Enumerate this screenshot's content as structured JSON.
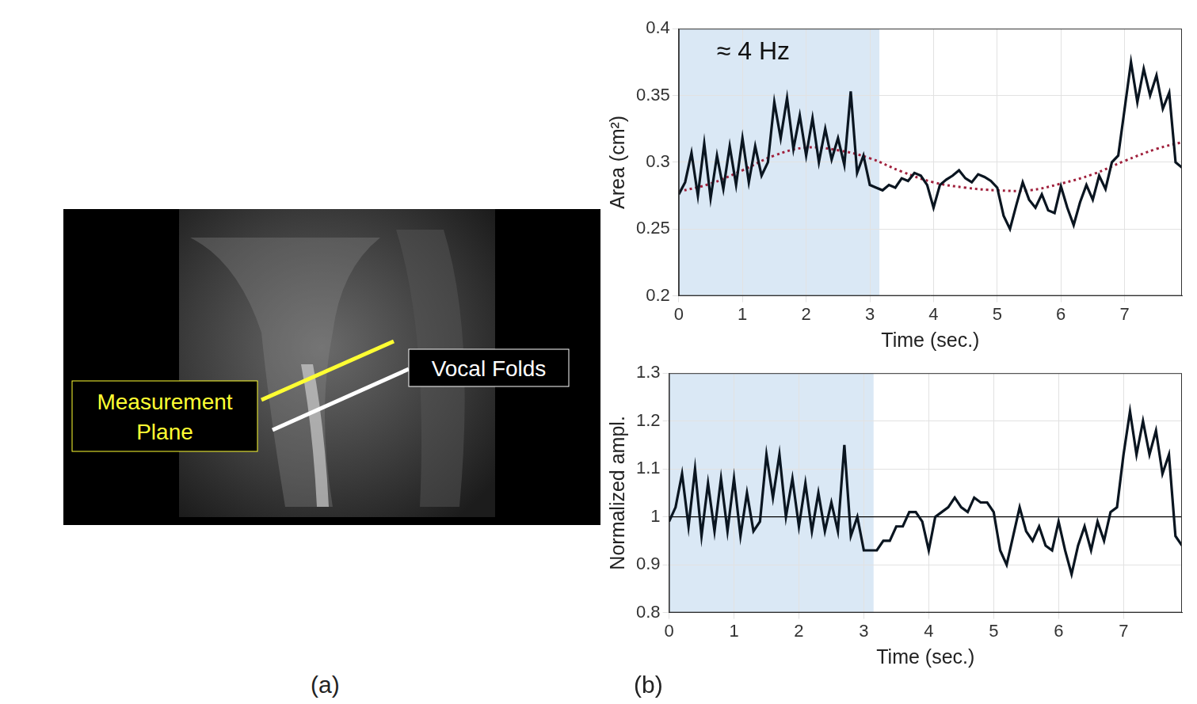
{
  "panel_a": {
    "label": "(a)",
    "annotations": [
      {
        "text": "Measurement Plane",
        "color": "#ffff33"
      },
      {
        "text": "Vocal Folds",
        "color": "#ffffff"
      }
    ]
  },
  "panel_b": {
    "label": "(b)"
  },
  "chart_data": [
    {
      "type": "line",
      "annotation": "≈ 4 Hz",
      "x_label": "Time (sec.)",
      "y_label": "Area (cm²)",
      "xlim": [
        0,
        7.9
      ],
      "xticks": [
        0,
        1,
        2,
        3,
        4,
        5,
        6,
        7
      ],
      "ylim": [
        0.2,
        0.4
      ],
      "yticks": [
        0.2,
        0.25,
        0.3,
        0.35,
        0.4
      ],
      "grid": true,
      "shaded_region": {
        "x": [
          0,
          3.15
        ],
        "color": "#dae8f5"
      },
      "x": [
        0,
        0.1,
        0.2,
        0.3,
        0.4,
        0.5,
        0.6,
        0.7,
        0.8,
        0.9,
        1,
        1.1,
        1.2,
        1.3,
        1.4,
        1.5,
        1.6,
        1.7,
        1.8,
        1.9,
        2,
        2.1,
        2.2,
        2.3,
        2.4,
        2.5,
        2.6,
        2.7,
        2.8,
        2.9,
        3,
        3.1,
        3.2,
        3.3,
        3.4,
        3.5,
        3.6,
        3.7,
        3.8,
        3.9,
        4,
        4.1,
        4.2,
        4.3,
        4.4,
        4.5,
        4.6,
        4.7,
        4.8,
        4.9,
        5,
        5.1,
        5.2,
        5.3,
        5.4,
        5.5,
        5.6,
        5.7,
        5.8,
        5.9,
        6,
        6.1,
        6.2,
        6.3,
        6.4,
        6.5,
        6.6,
        6.7,
        6.8,
        6.9,
        7,
        7.1,
        7.2,
        7.3,
        7.4,
        7.5,
        7.6,
        7.7,
        7.8,
        7.9
      ],
      "series": [
        {
          "color": "#0a1520",
          "line_style": "solid",
          "values": [
            0.276,
            0.285,
            0.307,
            0.275,
            0.314,
            0.273,
            0.305,
            0.28,
            0.312,
            0.283,
            0.318,
            0.285,
            0.312,
            0.29,
            0.3,
            0.345,
            0.318,
            0.348,
            0.31,
            0.335,
            0.305,
            0.333,
            0.3,
            0.325,
            0.302,
            0.318,
            0.298,
            0.353,
            0.292,
            0.305,
            0.283,
            0.281,
            0.279,
            0.283,
            0.281,
            0.288,
            0.286,
            0.292,
            0.29,
            0.283,
            0.266,
            0.283,
            0.287,
            0.29,
            0.294,
            0.288,
            0.285,
            0.291,
            0.289,
            0.286,
            0.281,
            0.26,
            0.25,
            0.268,
            0.285,
            0.272,
            0.266,
            0.276,
            0.264,
            0.262,
            0.282,
            0.266,
            0.253,
            0.27,
            0.283,
            0.272,
            0.29,
            0.28,
            0.3,
            0.305,
            0.34,
            0.375,
            0.345,
            0.37,
            0.35,
            0.365,
            0.34,
            0.352,
            0.3,
            0.296
          ]
        },
        {
          "color": "#a0203c",
          "line_style": "dotted",
          "x": [
            0,
            0.5,
            1,
            1.5,
            2,
            2.5,
            3,
            3.5,
            4,
            4.5,
            5,
            5.5,
            6,
            6.5,
            7,
            7.5,
            7.9
          ],
          "values": [
            0.278,
            0.284,
            0.294,
            0.305,
            0.311,
            0.309,
            0.303,
            0.293,
            0.285,
            0.281,
            0.279,
            0.279,
            0.284,
            0.291,
            0.301,
            0.31,
            0.315
          ]
        }
      ]
    },
    {
      "type": "line",
      "x_label": "Time (sec.)",
      "y_label": "Normalized ampl.",
      "xlim": [
        0,
        7.9
      ],
      "xticks": [
        0,
        1,
        2,
        3,
        4,
        5,
        6,
        7
      ],
      "ylim": [
        0.8,
        1.3
      ],
      "yticks": [
        0.8,
        0.9,
        1,
        1.1,
        1.2,
        1.3
      ],
      "grid": true,
      "shaded_region": {
        "x": [
          0,
          3.15
        ],
        "color": "#dae8f5"
      },
      "reference_line": {
        "y": 1,
        "color": "#000000"
      },
      "x": [
        0,
        0.1,
        0.2,
        0.3,
        0.4,
        0.5,
        0.6,
        0.7,
        0.8,
        0.9,
        1,
        1.1,
        1.2,
        1.3,
        1.4,
        1.5,
        1.6,
        1.7,
        1.8,
        1.9,
        2,
        2.1,
        2.2,
        2.3,
        2.4,
        2.5,
        2.6,
        2.7,
        2.8,
        2.9,
        3,
        3.1,
        3.2,
        3.3,
        3.4,
        3.5,
        3.6,
        3.7,
        3.8,
        3.9,
        4,
        4.1,
        4.2,
        4.3,
        4.4,
        4.5,
        4.6,
        4.7,
        4.8,
        4.9,
        5,
        5.1,
        5.2,
        5.3,
        5.4,
        5.5,
        5.6,
        5.7,
        5.8,
        5.9,
        6,
        6.1,
        6.2,
        6.3,
        6.4,
        6.5,
        6.6,
        6.7,
        6.8,
        6.9,
        7,
        7.1,
        7.2,
        7.3,
        7.4,
        7.5,
        7.6,
        7.7,
        7.8,
        7.9
      ],
      "series": [
        {
          "color": "#0a1520",
          "line_style": "solid",
          "values": [
            0.99,
            1.02,
            1.09,
            0.98,
            1.1,
            0.96,
            1.07,
            0.97,
            1.08,
            0.97,
            1.08,
            0.96,
            1.05,
            0.97,
            0.99,
            1.13,
            1.04,
            1.13,
            1.0,
            1.08,
            0.98,
            1.07,
            0.97,
            1.05,
            0.97,
            1.03,
            0.97,
            1.15,
            0.96,
            1.0,
            0.93,
            0.93,
            0.93,
            0.95,
            0.95,
            0.98,
            0.98,
            1.01,
            1.01,
            0.99,
            0.93,
            1.0,
            1.01,
            1.02,
            1.04,
            1.02,
            1.01,
            1.04,
            1.03,
            1.03,
            1.01,
            0.93,
            0.9,
            0.96,
            1.02,
            0.97,
            0.95,
            0.98,
            0.94,
            0.93,
            0.99,
            0.93,
            0.88,
            0.94,
            0.98,
            0.93,
            0.99,
            0.95,
            1.01,
            1.02,
            1.13,
            1.22,
            1.13,
            1.2,
            1.13,
            1.18,
            1.09,
            1.13,
            0.96,
            0.94
          ]
        }
      ]
    }
  ]
}
